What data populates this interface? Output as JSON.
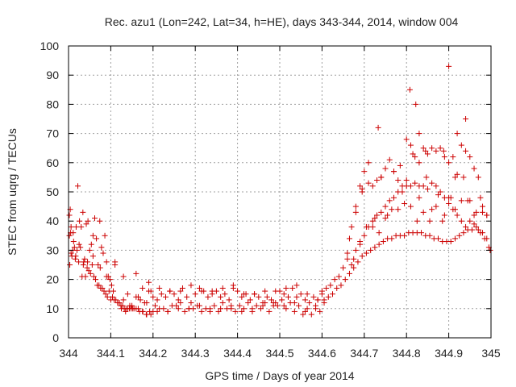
{
  "chart_data": {
    "type": "scatter",
    "title": "Rec. azu1 (Lon=242, Lat=34, h=HE), days 343-344, 2014, window 004",
    "xlabel": "GPS time / Days of year 2014",
    "ylabel": "STEC from uqrg / TECUs",
    "xlim": [
      344,
      345
    ],
    "ylim": [
      0,
      100
    ],
    "xticks": [
      "344",
      "344.1",
      "344.2",
      "344.3",
      "344.4",
      "344.5",
      "344.6",
      "344.7",
      "344.8",
      "344.9",
      "345"
    ],
    "yticks": [
      "0",
      "10",
      "20",
      "30",
      "40",
      "50",
      "60",
      "70",
      "80",
      "90",
      "100"
    ],
    "grid": true,
    "marker": "+",
    "color": "#cc0000",
    "series": [
      {
        "x": [
          344.002,
          344.004,
          344.006,
          344.01,
          344.014,
          344.018,
          344.022,
          344.026,
          344.03,
          344.034,
          344.038,
          344.042,
          344.046,
          344.05,
          344.054,
          344.058,
          344.062,
          344.066,
          344.07,
          344.074,
          344.078,
          344.082,
          344.086,
          344.09,
          344.094,
          344.098,
          344.102,
          344.106,
          344.11,
          344.003,
          344.008,
          344.016,
          344.024,
          344.032,
          344.04,
          344.048,
          344.056,
          344.064,
          344.072,
          344.08,
          344.088,
          344.096,
          344.104,
          344.112,
          344.12,
          344.128,
          344.136,
          344.144,
          344.152,
          344.16,
          344.168,
          344.176,
          344.184,
          344.192,
          344.2,
          344.005,
          344.012,
          344.02,
          344.028,
          344.036,
          344.044,
          344.052,
          344.06,
          344.068,
          344.076,
          344.084,
          344.092,
          344.1,
          344.108,
          344.116,
          344.124,
          344.132,
          344.14,
          344.148,
          344.002,
          344.006,
          344.011,
          344.017,
          344.025,
          344.035,
          344.045,
          344.058,
          344.075,
          344.09,
          344.11,
          344.13,
          344.16,
          344.165,
          344.19,
          344.12,
          344.13,
          344.14,
          344.15,
          344.16,
          344.17,
          344.18,
          344.19,
          344.2,
          344.21,
          344.22,
          344.23,
          344.24,
          344.25,
          344.26,
          344.27,
          344.28,
          344.29,
          344.3,
          344.31,
          344.32,
          344.33,
          344.34,
          344.35,
          344.36,
          344.37,
          344.38,
          344.39,
          344.4,
          344.41,
          344.42,
          344.43,
          344.44,
          344.45,
          344.46,
          344.47,
          344.48,
          344.49,
          344.5,
          344.51,
          344.52,
          344.53,
          344.54,
          344.55,
          344.56,
          344.57,
          344.58,
          344.59,
          344.6,
          344.125,
          344.145,
          344.165,
          344.185,
          344.205,
          344.225,
          344.245,
          344.265,
          344.285,
          344.305,
          344.325,
          344.345,
          344.365,
          344.385,
          344.405,
          344.425,
          344.445,
          344.465,
          344.485,
          344.505,
          344.525,
          344.545,
          344.565,
          344.585,
          344.605,
          344.135,
          344.155,
          344.175,
          344.195,
          344.215,
          344.235,
          344.255,
          344.275,
          344.295,
          344.315,
          344.335,
          344.355,
          344.375,
          344.395,
          344.415,
          344.435,
          344.455,
          344.475,
          344.495,
          344.515,
          344.535,
          344.555,
          344.575,
          344.595,
          344.175,
          344.195,
          344.215,
          344.24,
          344.265,
          344.29,
          344.315,
          344.34,
          344.365,
          344.39,
          344.415,
          344.44,
          344.465,
          344.49,
          344.515,
          344.54,
          344.565,
          344.59,
          344.185,
          344.21,
          344.235,
          344.26,
          344.285,
          344.31,
          344.335,
          344.36,
          344.385,
          344.41,
          344.435,
          344.46,
          344.485,
          344.51,
          344.535,
          344.56,
          344.585,
          344.6,
          344.61,
          344.62,
          344.63,
          344.64,
          344.65,
          344.66,
          344.67,
          344.68,
          344.69,
          344.7,
          344.71,
          344.72,
          344.73,
          344.74,
          344.75,
          344.76,
          344.77,
          344.78,
          344.79,
          344.8,
          344.81,
          344.82,
          344.83,
          344.84,
          344.85,
          344.86,
          344.87,
          344.88,
          344.89,
          344.9,
          344.91,
          344.92,
          344.93,
          344.94,
          344.95,
          344.96,
          344.97,
          344.98,
          344.99,
          344.998,
          344.605,
          344.615,
          344.625,
          344.635,
          344.645,
          344.655,
          344.665,
          344.675,
          344.685,
          344.695,
          344.705,
          344.715,
          344.725,
          344.735,
          344.745,
          344.755,
          344.765,
          344.775,
          344.785,
          344.795,
          344.805,
          344.815,
          344.825,
          344.835,
          344.845,
          344.855,
          344.865,
          344.875,
          344.885,
          344.895,
          344.905,
          344.915,
          344.925,
          344.935,
          344.945,
          344.955,
          344.965,
          344.975,
          344.985,
          344.995,
          344.66,
          344.67,
          344.68,
          344.69,
          344.7,
          344.71,
          344.72,
          344.73,
          344.74,
          344.75,
          344.76,
          344.77,
          344.78,
          344.79,
          344.8,
          344.81,
          344.82,
          344.83,
          344.84,
          344.85,
          344.86,
          344.87,
          344.88,
          344.89,
          344.9,
          344.91,
          344.92,
          344.93,
          344.94,
          344.95,
          344.96,
          344.97,
          344.98,
          344.99,
          344.665,
          344.68,
          344.695,
          344.71,
          344.725,
          344.74,
          344.755,
          344.77,
          344.785,
          344.8,
          344.815,
          344.83,
          344.845,
          344.86,
          344.875,
          344.89,
          344.905,
          344.92,
          344.935,
          344.95,
          344.965,
          344.98,
          344.675,
          344.69,
          344.705,
          344.72,
          344.735,
          344.75,
          344.765,
          344.78,
          344.795,
          344.81,
          344.825,
          344.84,
          344.855,
          344.87,
          344.885,
          344.9,
          344.915,
          344.93,
          344.945,
          344.96,
          344.975,
          344.99,
          344.695,
          344.733,
          344.808,
          344.822,
          344.83,
          344.847,
          344.888,
          344.9,
          344.94,
          344.915
        ],
        "y": [
          42,
          44,
          38,
          30,
          31,
          38,
          52,
          40,
          38,
          43,
          27,
          39,
          40,
          30,
          32,
          28,
          41,
          34,
          25,
          40,
          31,
          29,
          35,
          26,
          21,
          20,
          18,
          16,
          26,
          25,
          28,
          27,
          26,
          21,
          21,
          23,
          25,
          20,
          18,
          17,
          15,
          16,
          14,
          13,
          12,
          11,
          10,
          10,
          10,
          10,
          9,
          9,
          8,
          9,
          9,
          36,
          33,
          30,
          31,
          26,
          24,
          22,
          21,
          18,
          17,
          16,
          14,
          13,
          13,
          12,
          11,
          10,
          10,
          10,
          35,
          29,
          36,
          28,
          32,
          25,
          26,
          35,
          24,
          21,
          25,
          21,
          22,
          14,
          19,
          12,
          13,
          15,
          11,
          14,
          13,
          12,
          16,
          14,
          13,
          15,
          14,
          16,
          15,
          13,
          17,
          14,
          12,
          15,
          17,
          16,
          14,
          15,
          16,
          14,
          15,
          13,
          17,
          16,
          14,
          15,
          13,
          15,
          14,
          12,
          14,
          13,
          12,
          16,
          15,
          14,
          17,
          18,
          15,
          13,
          12,
          14,
          13,
          15,
          10,
          11,
          10,
          12,
          11,
          10,
          11,
          12,
          10,
          11,
          10,
          11,
          12,
          10,
          11,
          12,
          11,
          12,
          11,
          13,
          12,
          11,
          10,
          11,
          12,
          9,
          10,
          9,
          8,
          10,
          9,
          11,
          9,
          10,
          9,
          10,
          9,
          10,
          9,
          10,
          9,
          10,
          9,
          11,
          10,
          9,
          8,
          8,
          9,
          17,
          16,
          17,
          16,
          16,
          18,
          16,
          16,
          17,
          18,
          15,
          15,
          16,
          16,
          17,
          14,
          15,
          13,
          8,
          9,
          9,
          10,
          10,
          11,
          9,
          10,
          11,
          9,
          10,
          11,
          12,
          11,
          12,
          9,
          10,
          16,
          17,
          18,
          20,
          21,
          24,
          27,
          25,
          30,
          33,
          35,
          38,
          40,
          42,
          43,
          45,
          47,
          48,
          50,
          50,
          52,
          52,
          53,
          52,
          52,
          51,
          53,
          52,
          50,
          48,
          46,
          44,
          42,
          40,
          38,
          40,
          39,
          37,
          36,
          34,
          30,
          13,
          14,
          15,
          17,
          18,
          20,
          22,
          24,
          26,
          28,
          29,
          30,
          31,
          32,
          33,
          34,
          34,
          35,
          35,
          35,
          36,
          36,
          36,
          36,
          35,
          35,
          34,
          34,
          33,
          33,
          33,
          34,
          35,
          36,
          37,
          37,
          38,
          36,
          34,
          31,
          29,
          38,
          45,
          52,
          57,
          53,
          52,
          54,
          55,
          58,
          61,
          57,
          54,
          52,
          68,
          66,
          62,
          60,
          65,
          63,
          65,
          64,
          65,
          62,
          60,
          62,
          70,
          66,
          64,
          62,
          58,
          55,
          45,
          42,
          34,
          43,
          51,
          60,
          41,
          55,
          42,
          57,
          59,
          54,
          63,
          48,
          64,
          44,
          49,
          42,
          48,
          56,
          55,
          47,
          43,
          43,
          27,
          32,
          38,
          38,
          36,
          41,
          44,
          44,
          46,
          45,
          40,
          43,
          40,
          45,
          40,
          48,
          44,
          47,
          47,
          42,
          48,
          42,
          50,
          72,
          85,
          80,
          70,
          55,
          64,
          93,
          75,
          55
        ]
      }
    ]
  }
}
